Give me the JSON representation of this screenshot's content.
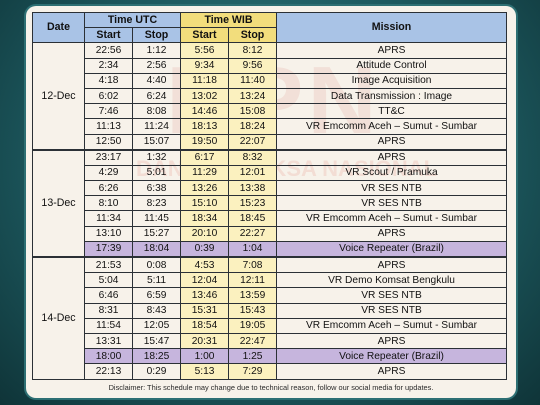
{
  "headers": {
    "date": "Date",
    "utc": "Time UTC",
    "wib": "Time WIB",
    "mission": "Mission",
    "start": "Start",
    "stop": "Stop"
  },
  "watermark": {
    "big": "BPN",
    "small": "DAN ANTARIKSA NASIONAL",
    "left": "P"
  },
  "groups": [
    {
      "date": "12-Dec",
      "rows": [
        {
          "utc_start": "22:56",
          "utc_stop": "1:12",
          "wib_start": "5:56",
          "wib_stop": "8:12",
          "mission": "APRS",
          "highlight": false
        },
        {
          "utc_start": "2:34",
          "utc_stop": "2:56",
          "wib_start": "9:34",
          "wib_stop": "9:56",
          "mission": "Attitude Control",
          "highlight": false
        },
        {
          "utc_start": "4:18",
          "utc_stop": "4:40",
          "wib_start": "11:18",
          "wib_stop": "11:40",
          "mission": "Image Acquisition",
          "highlight": false
        },
        {
          "utc_start": "6:02",
          "utc_stop": "6:24",
          "wib_start": "13:02",
          "wib_stop": "13:24",
          "mission": "Data Transmission : Image",
          "highlight": false
        },
        {
          "utc_start": "7:46",
          "utc_stop": "8:08",
          "wib_start": "14:46",
          "wib_stop": "15:08",
          "mission": "TT&C",
          "highlight": false
        },
        {
          "utc_start": "11:13",
          "utc_stop": "11:24",
          "wib_start": "18:13",
          "wib_stop": "18:24",
          "mission": "VR Emcomm Aceh – Sumut - Sumbar",
          "highlight": false
        },
        {
          "utc_start": "12:50",
          "utc_stop": "15:07",
          "wib_start": "19:50",
          "wib_stop": "22:07",
          "mission": "APRS",
          "highlight": false
        }
      ]
    },
    {
      "date": "13-Dec",
      "rows": [
        {
          "utc_start": "23:17",
          "utc_stop": "1:32",
          "wib_start": "6:17",
          "wib_stop": "8:32",
          "mission": "APRS",
          "highlight": false
        },
        {
          "utc_start": "4:29",
          "utc_stop": "5:01",
          "wib_start": "11:29",
          "wib_stop": "12:01",
          "mission": "VR Scout / Pramuka",
          "highlight": false
        },
        {
          "utc_start": "6:26",
          "utc_stop": "6:38",
          "wib_start": "13:26",
          "wib_stop": "13:38",
          "mission": "VR SES NTB",
          "highlight": false
        },
        {
          "utc_start": "8:10",
          "utc_stop": "8:23",
          "wib_start": "15:10",
          "wib_stop": "15:23",
          "mission": "VR SES NTB",
          "highlight": false
        },
        {
          "utc_start": "11:34",
          "utc_stop": "11:45",
          "wib_start": "18:34",
          "wib_stop": "18:45",
          "mission": "VR Emcomm Aceh – Sumut - Sumbar",
          "highlight": false
        },
        {
          "utc_start": "13:10",
          "utc_stop": "15:27",
          "wib_start": "20:10",
          "wib_stop": "22:27",
          "mission": "APRS",
          "highlight": false
        },
        {
          "utc_start": "17:39",
          "utc_stop": "18:04",
          "wib_start": "0:39",
          "wib_stop": "1:04",
          "mission": "Voice Repeater (Brazil)",
          "highlight": true
        }
      ]
    },
    {
      "date": "14-Dec",
      "rows": [
        {
          "utc_start": "21:53",
          "utc_stop": "0:08",
          "wib_start": "4:53",
          "wib_stop": "7:08",
          "mission": "APRS",
          "highlight": false
        },
        {
          "utc_start": "5:04",
          "utc_stop": "5:11",
          "wib_start": "12:04",
          "wib_stop": "12:11",
          "mission": "VR Demo Komsat Bengkulu",
          "highlight": false
        },
        {
          "utc_start": "6:46",
          "utc_stop": "6:59",
          "wib_start": "13:46",
          "wib_stop": "13:59",
          "mission": "VR SES NTB",
          "highlight": false
        },
        {
          "utc_start": "8:31",
          "utc_stop": "8:43",
          "wib_start": "15:31",
          "wib_stop": "15:43",
          "mission": "VR SES NTB",
          "highlight": false
        },
        {
          "utc_start": "11:54",
          "utc_stop": "12:05",
          "wib_start": "18:54",
          "wib_stop": "19:05",
          "mission": "VR Emcomm Aceh – Sumut - Sumbar",
          "highlight": false
        },
        {
          "utc_start": "13:31",
          "utc_stop": "15:47",
          "wib_start": "20:31",
          "wib_stop": "22:47",
          "mission": "APRS",
          "highlight": false
        },
        {
          "utc_start": "18:00",
          "utc_stop": "18:25",
          "wib_start": "1:00",
          "wib_stop": "1:25",
          "mission": "Voice Repeater (Brazil)",
          "highlight": true
        },
        {
          "utc_start": "22:13",
          "utc_stop": "0:29",
          "wib_start": "5:13",
          "wib_stop": "7:29",
          "mission": "APRS",
          "highlight": false
        }
      ]
    }
  ],
  "disclaimer": "Disclaimer: This schedule may change due to technical reason, follow our social media for updates.",
  "colors": {
    "header_blue": "#a9c3e6",
    "header_yellow": "#f2dd7c",
    "wib_fill": "#fbf1bf",
    "highlight_purple": "#c6b5dd"
  }
}
